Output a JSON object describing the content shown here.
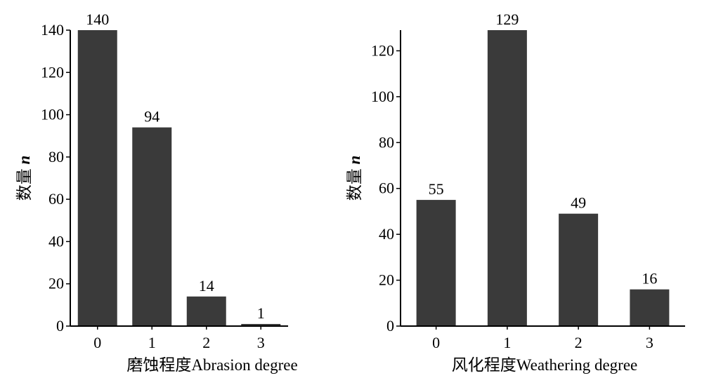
{
  "chart_data": [
    {
      "type": "bar",
      "categories": [
        "0",
        "1",
        "2",
        "3"
      ],
      "values": [
        140,
        94,
        14,
        1
      ],
      "data_labels": [
        "140",
        "94",
        "14",
        "1"
      ],
      "title": "",
      "xlabel_cn": "磨蚀程度",
      "xlabel_en": "Abrasion degree",
      "ylabel_cn": "数量",
      "ylabel_var": "n",
      "ylim": [
        0,
        140
      ],
      "yticks": [
        0,
        20,
        40,
        60,
        80,
        100,
        120,
        140
      ],
      "bar_color": "#3a3a3a",
      "grid": false
    },
    {
      "type": "bar",
      "categories": [
        "0",
        "1",
        "2",
        "3"
      ],
      "values": [
        55,
        129,
        49,
        16
      ],
      "data_labels": [
        "55",
        "129",
        "49",
        "16"
      ],
      "title": "",
      "xlabel_cn": "风化程度",
      "xlabel_en": "Weathering degree",
      "ylabel_cn": "数量",
      "ylabel_var": "n",
      "ylim": [
        0,
        129
      ],
      "yticks": [
        0,
        20,
        40,
        60,
        80,
        100,
        120
      ],
      "bar_color": "#3a3a3a",
      "grid": false
    }
  ]
}
